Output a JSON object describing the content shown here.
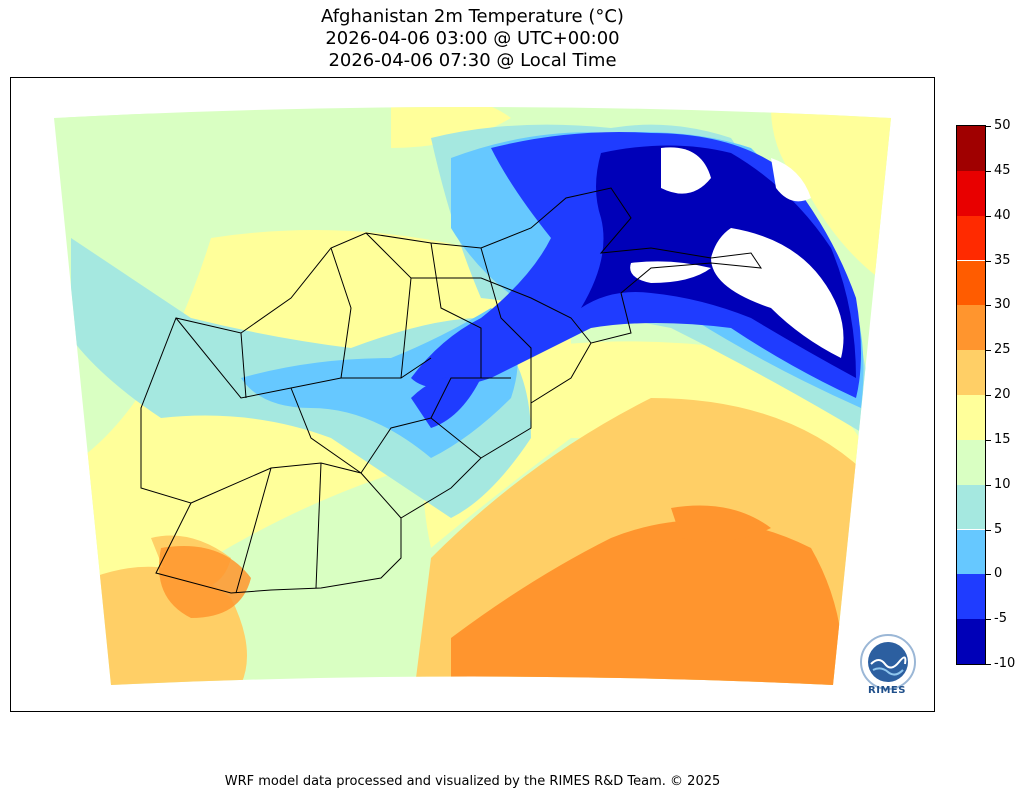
{
  "title": {
    "line1": "Afghanistan 2m Temperature (°C)",
    "line2": "2026-04-06 03:00 @ UTC+00:00",
    "line3": "2026-04-06 07:30 @ Local Time"
  },
  "colorbar": {
    "levels": [
      {
        "low": -10,
        "high": -5,
        "color": "#0000b8"
      },
      {
        "low": -5,
        "high": 0,
        "color": "#1f3cff"
      },
      {
        "low": 0,
        "high": 5,
        "color": "#66c8ff"
      },
      {
        "low": 5,
        "high": 10,
        "color": "#a5e8e0"
      },
      {
        "low": 10,
        "high": 15,
        "color": "#d9ffc2"
      },
      {
        "low": 15,
        "high": 20,
        "color": "#ffff9a"
      },
      {
        "low": 20,
        "high": 25,
        "color": "#ffcf66"
      },
      {
        "low": 25,
        "high": 30,
        "color": "#ff952e"
      },
      {
        "low": 30,
        "high": 35,
        "color": "#ff5c00"
      },
      {
        "low": 35,
        "high": 40,
        "color": "#ff2a00"
      },
      {
        "low": 40,
        "high": 45,
        "color": "#e80000"
      },
      {
        "low": 45,
        "high": 50,
        "color": "#a00000"
      }
    ],
    "tick_labels": [
      "50",
      "45",
      "40",
      "35",
      "30",
      "25",
      "20",
      "15",
      "10",
      "5",
      "0",
      "-5",
      "-10"
    ]
  },
  "logo": {
    "text": "RIMES",
    "icon": "rimes-logo-icon"
  },
  "footer": {
    "text": "WRF model data processed and visualized by the RIMES R&D Team. © 2025"
  }
}
